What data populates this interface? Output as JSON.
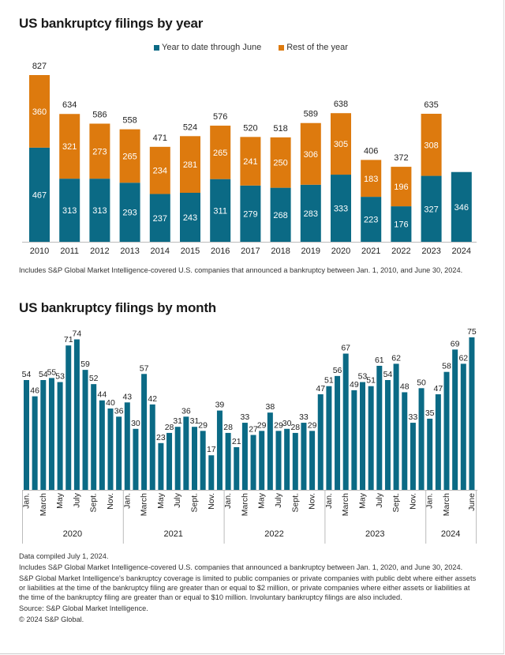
{
  "colors": {
    "ytd": "#0b6a85",
    "rest": "#dd7a0e",
    "text": "#222222",
    "axis": "#bbbbbb"
  },
  "chart_data": [
    {
      "type": "bar",
      "stacked": true,
      "title": "US bankruptcy filings by year",
      "categories": [
        "2010",
        "2011",
        "2012",
        "2013",
        "2014",
        "2015",
        "2016",
        "2017",
        "2018",
        "2019",
        "2020",
        "2021",
        "2022",
        "2023",
        "2024"
      ],
      "series": [
        {
          "name": "Year to date through June",
          "values": [
            467,
            313,
            313,
            293,
            237,
            243,
            311,
            279,
            268,
            283,
            333,
            223,
            176,
            327,
            346
          ]
        },
        {
          "name": "Rest of the year",
          "values": [
            360,
            321,
            273,
            265,
            234,
            281,
            265,
            241,
            250,
            306,
            305,
            183,
            196,
            308,
            null
          ]
        }
      ],
      "totals": [
        827,
        634,
        586,
        558,
        471,
        524,
        576,
        520,
        518,
        589,
        638,
        406,
        372,
        635,
        null
      ],
      "legend_position": "top-center",
      "ylim": [
        0,
        900
      ],
      "grid": false,
      "xlabel": "",
      "ylabel": ""
    },
    {
      "type": "bar",
      "title": "US bankruptcy filings by month",
      "series": [
        {
          "name": "Filings",
          "values": [
            54,
            46,
            54,
            55,
            53,
            71,
            74,
            59,
            52,
            44,
            40,
            36,
            43,
            30,
            57,
            42,
            23,
            28,
            31,
            36,
            31,
            29,
            17,
            39,
            28,
            21,
            33,
            27,
            29,
            38,
            29,
            30,
            28,
            33,
            29,
            47,
            51,
            56,
            67,
            49,
            53,
            51,
            61,
            54,
            62,
            48,
            33,
            50,
            35,
            47,
            58,
            69,
            62,
            75
          ]
        }
      ],
      "month_labels": [
        "Jan.",
        "",
        "March",
        "",
        "May",
        "",
        "July",
        "",
        "Sept.",
        "",
        "Nov.",
        ""
      ],
      "month_labels_2024": [
        "Jan.",
        "",
        "March",
        "",
        "",
        "June"
      ],
      "years": [
        "2020",
        "2021",
        "2022",
        "2023",
        "2024"
      ],
      "ylim": [
        0,
        80
      ],
      "grid": false,
      "xlabel": "",
      "ylabel": ""
    }
  ],
  "year_chart": {
    "title": "US bankruptcy filings by year",
    "legend": [
      "Year to date through June",
      "Rest of the year"
    ],
    "note": "Includes S&P Global Market Intelligence-covered U.S. companies that announced a bankruptcy between Jan. 1, 2010, and June 30, 2024."
  },
  "month_chart": {
    "title": "US bankruptcy filings by month"
  },
  "footer": {
    "compiled": "Data compiled July 1, 2024.",
    "includes": "Includes S&P Global Market Intelligence-covered U.S. companies that announced a bankruptcy between Jan. 1, 2020, and June 30, 2024.",
    "coverage": "S&P Global Market Intelligence's bankruptcy coverage is limited to public companies or private companies with public debt where either assets or liabilities at the time of the bankruptcy filing are greater than or equal to $2 million, or private companies where either assets or liabilities at the time of the bankruptcy filing are greater than or equal to $10 million. Involuntary bankruptcy filings are also included.",
    "source": "Source: S&P Global Market Intelligence.",
    "copyright": "© 2024 S&P Global."
  }
}
